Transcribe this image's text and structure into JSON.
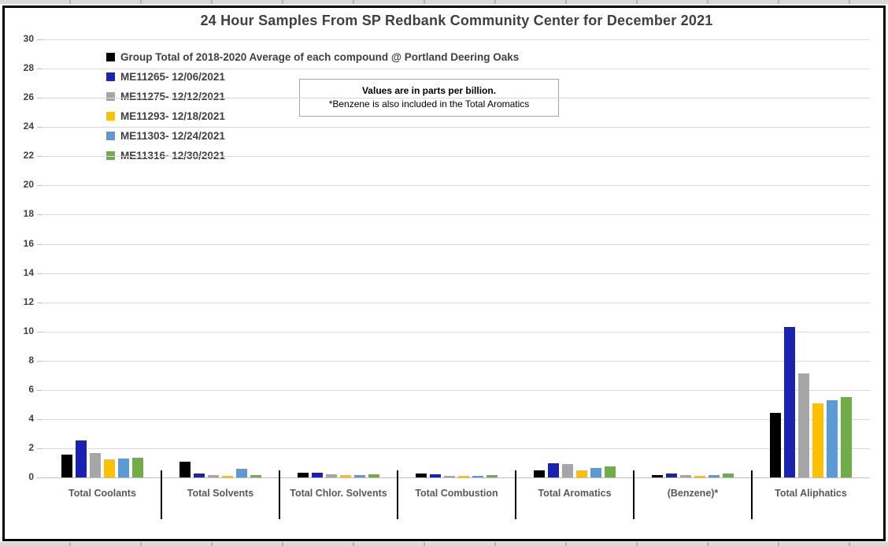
{
  "colors": {
    "chart_background": "#FFFFFF",
    "chart_border": "#000000",
    "gridline": "#D9D9D9",
    "axis_line": "#BFBFBF",
    "title_text": "#404040",
    "legend_text": "#404040",
    "axis_tick_text": "#404040",
    "category_text": "#595959",
    "category_separator": "#000000",
    "annotation_border": "#A6A6A6",
    "spreadsheet_strip": "#D9D9D9"
  },
  "chart_data": {
    "type": "bar",
    "title": "24 Hour Samples From SP Redbank Community Center for December 2021",
    "values_unit": "parts per billion",
    "categories": [
      "Total Coolants",
      "Total Solvents",
      "Total Chlor. Solvents",
      "Total Combustion",
      "Total Aromatics",
      "(Benzene)*",
      "Total Aliphatics"
    ],
    "series": [
      {
        "name": "Group Total of 2018-2020 Average of each compound @ Portland Deering Oaks",
        "color": "#000000",
        "values": [
          1.55,
          1.1,
          0.35,
          0.27,
          0.5,
          0.15,
          4.45
        ]
      },
      {
        "name": "ME11265- 12/06/2021",
        "color": "#1A22B2",
        "values": [
          2.55,
          0.25,
          0.3,
          0.22,
          0.95,
          0.25,
          10.3
        ]
      },
      {
        "name": "ME11275- 12/12/2021",
        "color": "#A6A6A6",
        "values": [
          1.7,
          0.18,
          0.22,
          0.12,
          0.9,
          0.15,
          7.1
        ]
      },
      {
        "name": "ME11293- 12/18/2021",
        "color": "#FFC000",
        "values": [
          1.25,
          0.1,
          0.18,
          0.13,
          0.5,
          0.1,
          5.05
        ]
      },
      {
        "name": "ME11303- 12/24/2021",
        "color": "#5B9BD5",
        "values": [
          1.3,
          0.6,
          0.18,
          0.12,
          0.65,
          0.15,
          5.3
        ]
      },
      {
        "name": "ME11316- 12/30/2021",
        "color": "#70AD47",
        "values": [
          1.35,
          0.15,
          0.2,
          0.18,
          0.75,
          0.25,
          5.5
        ]
      }
    ],
    "xlabel": "",
    "ylabel": "",
    "ylim": [
      0,
      30
    ],
    "ytick_step": 2,
    "grid": true,
    "legend_position": "top-left-vertical",
    "annotation": {
      "line1": "Values are in parts per billion.",
      "line2": "*Benzene is also included in the Total Aromatics"
    }
  }
}
